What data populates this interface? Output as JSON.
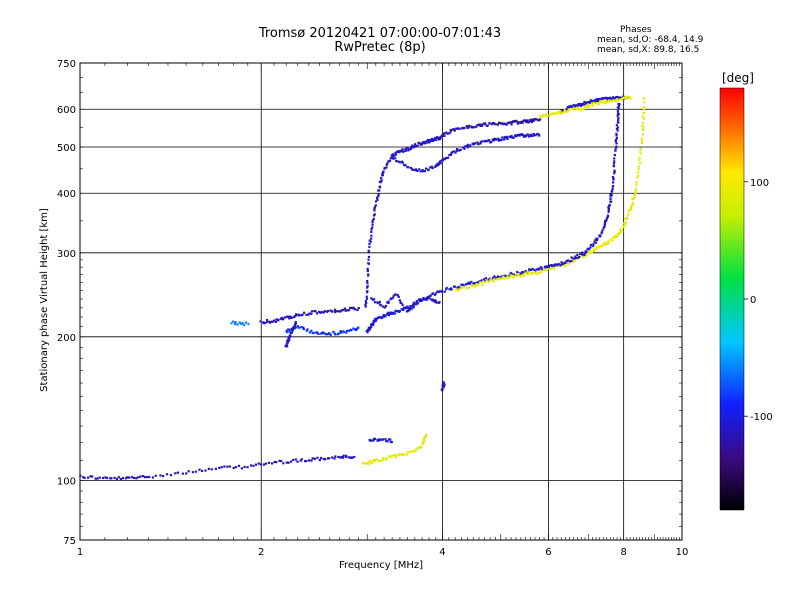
{
  "title_line1": "Tromsø 20120421 07:00:00-07:01:43",
  "title_line2": "RwPretec (8p)",
  "phases": {
    "heading": "Phases",
    "line_o": "mean, sd,O: -68.4, 14.9",
    "line_x": "mean, sd,X:  89.8, 16.5"
  },
  "colorbar": {
    "unit_label": "[deg]",
    "ticks": [
      {
        "value": 100,
        "label": "100"
      },
      {
        "value": 0,
        "label": "0"
      },
      {
        "value": -100,
        "label": "-100"
      }
    ],
    "range": [
      -180,
      180
    ]
  },
  "chart_data": {
    "type": "scatter",
    "xlabel": "Frequency [MHz]",
    "ylabel": "Stationary phase Virtual Height [km]",
    "xscale": "log",
    "yscale": "log",
    "xlim": [
      1,
      10
    ],
    "ylim": [
      75,
      750
    ],
    "x_ticks": [
      {
        "value": 1,
        "label": "1"
      },
      {
        "value": 2,
        "label": "2"
      },
      {
        "value": 4,
        "label": "4"
      },
      {
        "value": 6,
        "label": "6"
      },
      {
        "value": 8,
        "label": "8"
      },
      {
        "value": 10,
        "label": "10"
      }
    ],
    "y_ticks": [
      {
        "value": 75,
        "label": "75"
      },
      {
        "value": 100,
        "label": "100"
      },
      {
        "value": 200,
        "label": "200"
      },
      {
        "value": 300,
        "label": "300"
      },
      {
        "value": 400,
        "label": "400"
      },
      {
        "value": 500,
        "label": "500"
      },
      {
        "value": 600,
        "label": "600"
      },
      {
        "value": 750,
        "label": "750"
      }
    ],
    "grid_x": [
      2,
      4,
      6,
      8
    ],
    "grid_y": [
      100,
      200,
      300,
      400,
      500,
      600
    ],
    "color_quantity": "Phase [deg]",
    "traces": [
      {
        "x": [
          1.0,
          1.1,
          1.2,
          1.3,
          1.5,
          1.7,
          1.9,
          2.1,
          2.3,
          2.5,
          2.7,
          2.85
        ],
        "y": [
          102,
          101,
          101,
          102,
          104,
          106,
          107,
          109,
          110,
          111,
          112,
          112
        ],
        "phase": -115
      },
      {
        "x": [
          2.95,
          3.1,
          3.3,
          3.5,
          3.7,
          3.75
        ],
        "y": [
          108,
          110,
          112,
          114,
          118,
          125
        ],
        "phase": 90
      },
      {
        "x": [
          3.02,
          3.15,
          3.3
        ],
        "y": [
          121,
          122,
          121
        ],
        "phase": -100
      },
      {
        "x": [
          1.78,
          1.9
        ],
        "y": [
          214,
          213
        ],
        "phase": -60
      },
      {
        "x": [
          2.0,
          2.1,
          2.2,
          2.3,
          2.45,
          2.6,
          2.75,
          2.9
        ],
        "y": [
          215,
          216,
          219,
          222,
          225,
          226,
          228,
          229
        ],
        "phase": -115
      },
      {
        "x": [
          2.2,
          2.3,
          2.45,
          2.6,
          2.75,
          2.9
        ],
        "y": [
          205,
          210,
          204,
          203,
          205,
          209
        ],
        "phase": -85
      },
      {
        "x": [
          2.2,
          2.22,
          2.25,
          2.28
        ],
        "y": [
          190,
          198,
          206,
          214
        ],
        "phase": -110
      },
      {
        "x": [
          3.0,
          3.05,
          3.1,
          3.2,
          3.3,
          3.45,
          3.6,
          3.8,
          4.0,
          4.25,
          4.5,
          4.75,
          5.0,
          5.25,
          5.5,
          5.8,
          6.0
        ],
        "y": [
          205,
          212,
          218,
          222,
          224,
          228,
          235,
          243,
          250,
          255,
          260,
          264,
          268,
          271,
          274,
          278,
          280
        ],
        "phase": -105
      },
      {
        "x": [
          4.2,
          4.5,
          4.8,
          5.1,
          5.4,
          5.7,
          6.0,
          6.3,
          6.6,
          6.9,
          7.2,
          7.5,
          7.8,
          8.0,
          8.2,
          8.35,
          8.5,
          8.6,
          8.65
        ],
        "y": [
          250,
          256,
          262,
          267,
          270,
          272,
          278,
          282,
          288,
          298,
          306,
          315,
          325,
          342,
          368,
          400,
          460,
          540,
          630
        ],
        "phase": 92
      },
      {
        "x": [
          6.0,
          6.3,
          6.6,
          6.9,
          7.15,
          7.35,
          7.5,
          7.6,
          7.68,
          7.73,
          7.78,
          7.82,
          7.85
        ],
        "y": [
          280,
          285,
          292,
          300,
          315,
          330,
          355,
          385,
          420,
          470,
          520,
          570,
          620
        ],
        "phase": -110
      },
      {
        "x": [
          2.98,
          3.0,
          3.02,
          3.05,
          3.1,
          3.15,
          3.2,
          3.3,
          3.4,
          3.5,
          3.6,
          3.7,
          3.8,
          3.9,
          4.0
        ],
        "y": [
          230,
          260,
          300,
          340,
          380,
          420,
          450,
          480,
          490,
          495,
          505,
          510,
          515,
          520,
          525
        ],
        "phase": -110
      },
      {
        "x": [
          3.3,
          3.5,
          3.7,
          3.9,
          4.0,
          4.2,
          4.4,
          4.6,
          4.8,
          5.0,
          5.2,
          5.4,
          5.6,
          5.8
        ],
        "y": [
          475,
          455,
          445,
          455,
          470,
          490,
          502,
          510,
          515,
          520,
          525,
          528,
          530,
          532
        ],
        "phase": -110
      },
      {
        "x": [
          4.0,
          4.2,
          4.4,
          4.6,
          4.8,
          5.0,
          5.2,
          5.4,
          5.6,
          5.8
        ],
        "y": [
          530,
          545,
          550,
          555,
          558,
          560,
          562,
          565,
          568,
          570
        ],
        "phase": -120
      },
      {
        "x": [
          6.3,
          6.5,
          6.7,
          6.9,
          7.1,
          7.3,
          7.5,
          7.7,
          7.9,
          8.1
        ],
        "y": [
          595,
          605,
          612,
          618,
          625,
          628,
          630,
          632,
          634,
          636
        ],
        "phase": -110
      },
      {
        "x": [
          5.8,
          6.1,
          6.4,
          6.7,
          7.0,
          7.3,
          7.6,
          7.9,
          8.2
        ],
        "y": [
          580,
          585,
          595,
          600,
          610,
          620,
          625,
          630,
          635
        ],
        "phase": 92
      },
      {
        "x": [
          3.05,
          3.2,
          3.35,
          3.5,
          3.65,
          3.8,
          3.95
        ],
        "y": [
          240,
          232,
          245,
          225,
          238,
          242,
          236
        ],
        "phase": -110
      },
      {
        "x": [
          4.0,
          4.02
        ],
        "y": [
          155,
          160
        ],
        "phase": -110
      }
    ]
  }
}
